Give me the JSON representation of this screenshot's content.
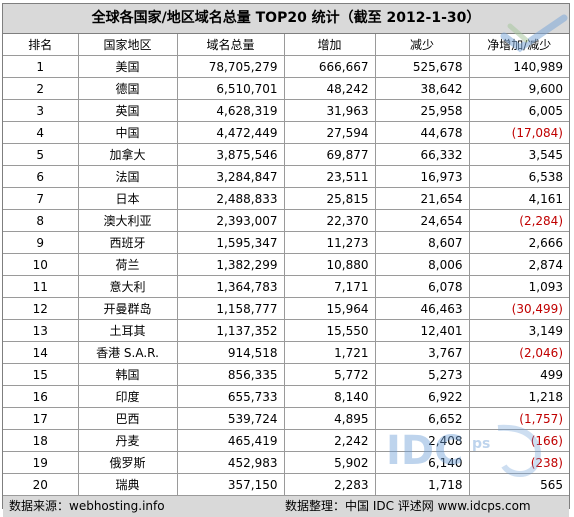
{
  "title": "全球各国家/地区域名总量 TOP20 统计（截至 2012-1-30）",
  "columns": [
    "排名",
    "国家地区",
    "域名总量",
    "增加",
    "减少",
    "净增加/减少"
  ],
  "rows": [
    {
      "rank": "1",
      "country": "美国",
      "total": "78,705,279",
      "added": "666,667",
      "removed": "525,678",
      "net": "140,989",
      "negative": false
    },
    {
      "rank": "2",
      "country": "德国",
      "total": "6,510,701",
      "added": "48,242",
      "removed": "38,642",
      "net": "9,600",
      "negative": false
    },
    {
      "rank": "3",
      "country": "英国",
      "total": "4,628,319",
      "added": "31,963",
      "removed": "25,958",
      "net": "6,005",
      "negative": false
    },
    {
      "rank": "4",
      "country": "中国",
      "total": "4,472,449",
      "added": "27,594",
      "removed": "44,678",
      "net": "(17,084)",
      "negative": true
    },
    {
      "rank": "5",
      "country": "加拿大",
      "total": "3,875,546",
      "added": "69,877",
      "removed": "66,332",
      "net": "3,545",
      "negative": false
    },
    {
      "rank": "6",
      "country": "法国",
      "total": "3,284,847",
      "added": "23,511",
      "removed": "16,973",
      "net": "6,538",
      "negative": false
    },
    {
      "rank": "7",
      "country": "日本",
      "total": "2,488,833",
      "added": "25,815",
      "removed": "21,654",
      "net": "4,161",
      "negative": false
    },
    {
      "rank": "8",
      "country": "澳大利亚",
      "total": "2,393,007",
      "added": "22,370",
      "removed": "24,654",
      "net": "(2,284)",
      "negative": true
    },
    {
      "rank": "9",
      "country": "西班牙",
      "total": "1,595,347",
      "added": "11,273",
      "removed": "8,607",
      "net": "2,666",
      "negative": false
    },
    {
      "rank": "10",
      "country": "荷兰",
      "total": "1,382,299",
      "added": "10,880",
      "removed": "8,006",
      "net": "2,874",
      "negative": false
    },
    {
      "rank": "11",
      "country": "意大利",
      "total": "1,364,783",
      "added": "7,171",
      "removed": "6,078",
      "net": "1,093",
      "negative": false
    },
    {
      "rank": "12",
      "country": "开曼群岛",
      "total": "1,158,777",
      "added": "15,964",
      "removed": "46,463",
      "net": "(30,499)",
      "negative": true
    },
    {
      "rank": "13",
      "country": "土耳其",
      "total": "1,137,352",
      "added": "15,550",
      "removed": "12,401",
      "net": "3,149",
      "negative": false
    },
    {
      "rank": "14",
      "country": "香港 S.A.R.",
      "total": "914,518",
      "added": "1,721",
      "removed": "3,767",
      "net": "(2,046)",
      "negative": true
    },
    {
      "rank": "15",
      "country": "韩国",
      "total": "856,335",
      "added": "5,772",
      "removed": "5,273",
      "net": "499",
      "negative": false
    },
    {
      "rank": "16",
      "country": "印度",
      "total": "655,733",
      "added": "8,140",
      "removed": "6,922",
      "net": "1,218",
      "negative": false
    },
    {
      "rank": "17",
      "country": "巴西",
      "total": "539,724",
      "added": "4,895",
      "removed": "6,652",
      "net": "(1,757)",
      "negative": true
    },
    {
      "rank": "18",
      "country": "丹麦",
      "total": "465,419",
      "added": "2,242",
      "removed": "2,408",
      "net": "(166)",
      "negative": true
    },
    {
      "rank": "19",
      "country": "俄罗斯",
      "total": "452,983",
      "added": "5,902",
      "removed": "6,140",
      "net": "(238)",
      "negative": true
    },
    {
      "rank": "20",
      "country": "瑞典",
      "total": "357,150",
      "added": "2,283",
      "removed": "1,718",
      "net": "565",
      "negative": false
    }
  ],
  "footer": {
    "source": "数据来源：webhosting.info",
    "compiled": "数据整理：中国 IDC 评述网 www.idcps.com"
  },
  "watermark": {
    "text": "IDC",
    "suffix": "ps"
  },
  "colors": {
    "header_bg": "#d9d9d9",
    "negative": "#c00000",
    "grid": "#9a9a9a"
  },
  "icons": [
    "checkmark-logo-icon",
    "idc-watermark-icon"
  ]
}
